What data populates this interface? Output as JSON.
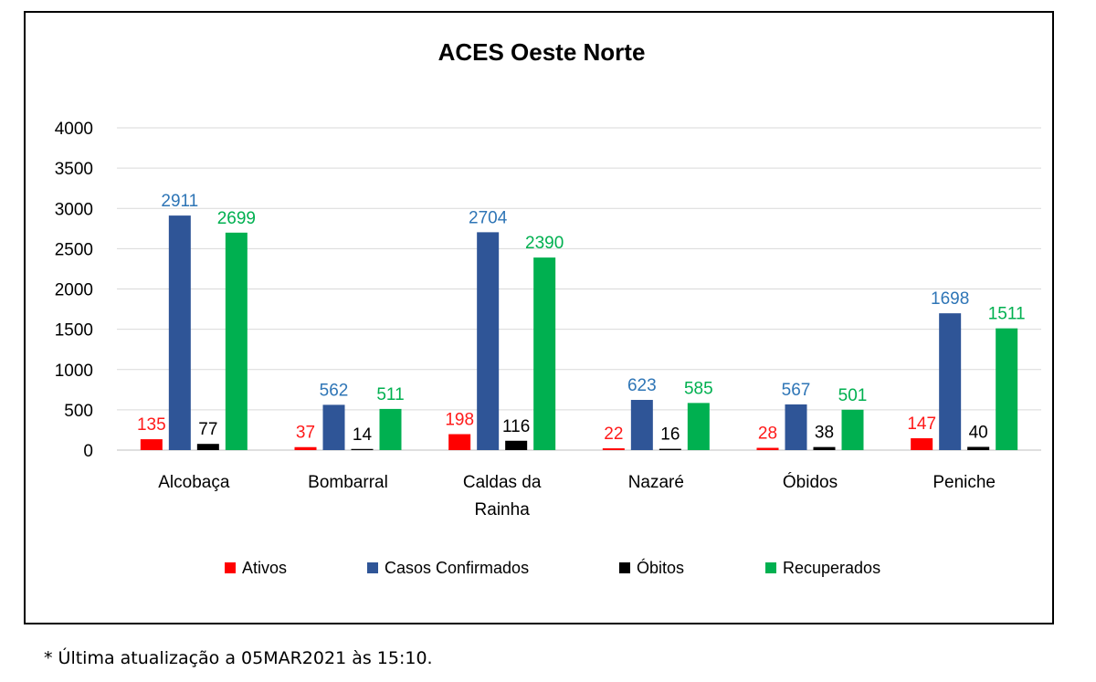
{
  "chart_data": {
    "type": "bar",
    "title": "ACES Oeste Norte",
    "categories": [
      [
        "Alcobaça"
      ],
      [
        "Bombarral"
      ],
      [
        "Caldas da",
        "Rainha"
      ],
      [
        "Nazaré"
      ],
      [
        "Óbidos"
      ],
      [
        "Peniche"
      ]
    ],
    "ylim": [
      0,
      4000
    ],
    "yticks": [
      0,
      500,
      1000,
      1500,
      2000,
      2500,
      3000,
      3500,
      4000
    ],
    "grid": true,
    "legend_position": "bottom",
    "series": [
      {
        "name": "Ativos",
        "color": "#ff0000",
        "label_color": "#ff1a1a",
        "values": [
          135,
          37,
          198,
          22,
          28,
          147
        ]
      },
      {
        "name": "Casos Confirmados",
        "color": "#2f5597",
        "label_color": "#2e75b6",
        "values": [
          2911,
          562,
          2704,
          623,
          567,
          1698
        ]
      },
      {
        "name": "Óbitos",
        "color": "#000000",
        "label_color": "#000000",
        "values": [
          77,
          14,
          116,
          16,
          38,
          40
        ]
      },
      {
        "name": "Recuperados",
        "color": "#00b050",
        "label_color": "#00b050",
        "values": [
          2699,
          511,
          2390,
          585,
          501,
          1511
        ]
      }
    ]
  },
  "footnote": "* Última atualização a 05MAR2021 às 15:10."
}
